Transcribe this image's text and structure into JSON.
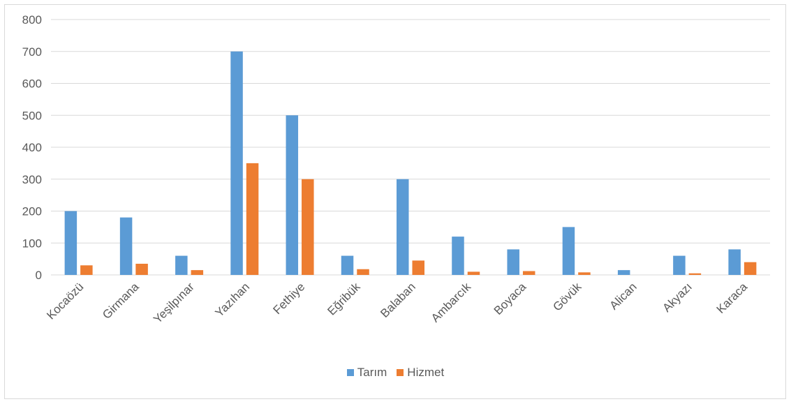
{
  "chart_data": {
    "type": "bar",
    "title": "",
    "xlabel": "",
    "ylabel": "",
    "ylim": [
      0,
      800
    ],
    "yticks": [
      0,
      100,
      200,
      300,
      400,
      500,
      600,
      700,
      800
    ],
    "grid": true,
    "legend_position": "bottom",
    "categories": [
      "Kocaözü",
      "Girmana",
      "Yeşilpınar",
      "Yazıhan",
      "Fethiye",
      "Eğribük",
      "Balaban",
      "Ambarcık",
      "Boyaca",
      "Gövük",
      "Alican",
      "Akyazı",
      "Karaca"
    ],
    "series": [
      {
        "name": "Tarım",
        "color": "#5b9bd5",
        "values": [
          200,
          180,
          60,
          700,
          500,
          60,
          300,
          120,
          80,
          150,
          15,
          60,
          80
        ]
      },
      {
        "name": "Hizmet",
        "color": "#ed7d31",
        "values": [
          30,
          35,
          15,
          350,
          300,
          18,
          45,
          10,
          12,
          8,
          0,
          5,
          40
        ]
      }
    ]
  }
}
